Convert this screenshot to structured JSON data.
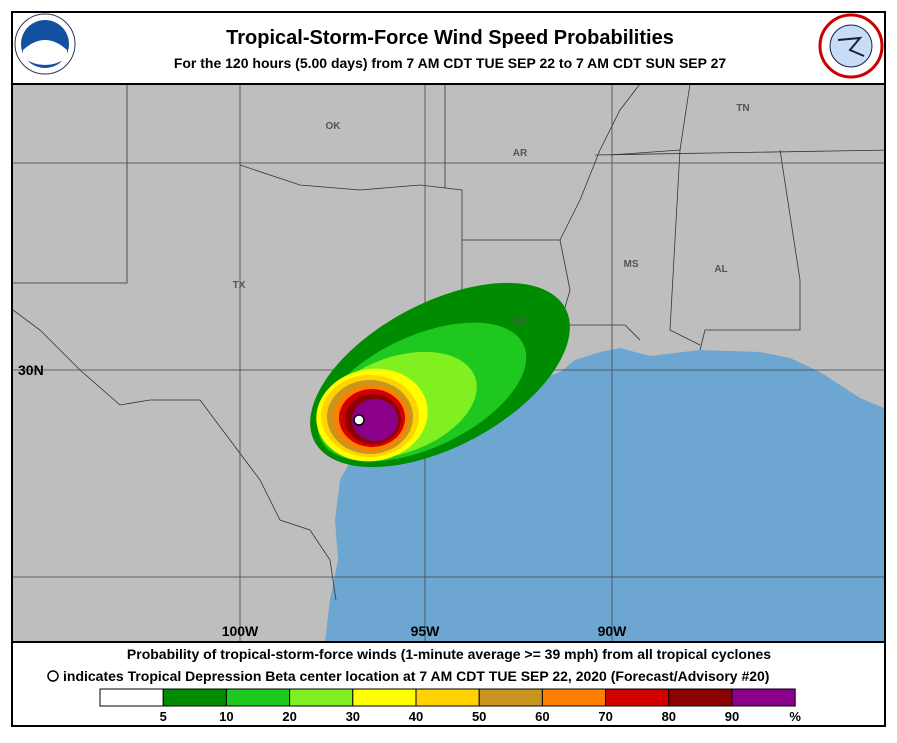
{
  "header": {
    "title": "Tropical-Storm-Force Wind Speed Probabilities",
    "subtitle": "For the 120 hours (5.00 days) from 7 AM CDT TUE SEP 22 to 7 AM CDT SUN SEP 27"
  },
  "map": {
    "state_labels": [
      "OK",
      "AR",
      "TN",
      "MS",
      "AL",
      "TX",
      "LA"
    ],
    "latitude_labels": [
      "30N"
    ],
    "longitude_labels": [
      "100W",
      "95W",
      "90W"
    ]
  },
  "footer": {
    "line1": "Probability of tropical-storm-force winds (1-minute average >= 39 mph) from all tropical cyclones",
    "line2": "indicates Tropical Depression Beta center location at 7 AM CDT TUE SEP 22, 2020 (Forecast/Advisory #20)"
  },
  "legend": {
    "colors": [
      "#ffffff",
      "#008c00",
      "#1ec81e",
      "#80f020",
      "#ffff00",
      "#ffd200",
      "#c8961e",
      "#ff8000",
      "#d20000",
      "#8b0000",
      "#8b008b"
    ],
    "labels": [
      "5",
      "10",
      "20",
      "30",
      "40",
      "50",
      "60",
      "70",
      "80",
      "90",
      "%"
    ]
  }
}
